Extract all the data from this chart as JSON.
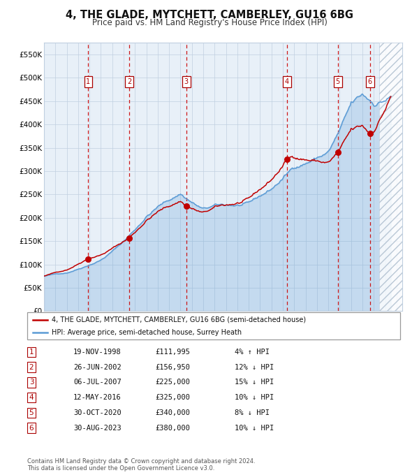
{
  "title": "4, THE GLADE, MYTCHETT, CAMBERLEY, GU16 6BG",
  "subtitle": "Price paid vs. HM Land Registry's House Price Index (HPI)",
  "legend_line1": "4, THE GLADE, MYTCHETT, CAMBERLEY, GU16 6BG (semi-detached house)",
  "legend_line2": "HPI: Average price, semi-detached house, Surrey Heath",
  "footer1": "Contains HM Land Registry data © Crown copyright and database right 2024.",
  "footer2": "This data is licensed under the Open Government Licence v3.0.",
  "xlim_start": 1995.0,
  "xlim_end": 2026.5,
  "ylim_min": 0,
  "ylim_max": 575000,
  "yticks": [
    0,
    50000,
    100000,
    150000,
    200000,
    250000,
    300000,
    350000,
    400000,
    450000,
    500000,
    550000
  ],
  "ytick_labels": [
    "£0",
    "£50K",
    "£100K",
    "£150K",
    "£200K",
    "£250K",
    "£300K",
    "£350K",
    "£400K",
    "£450K",
    "£500K",
    "£550K"
  ],
  "xticks": [
    1995,
    1996,
    1997,
    1998,
    1999,
    2000,
    2001,
    2002,
    2003,
    2004,
    2005,
    2006,
    2007,
    2008,
    2009,
    2010,
    2011,
    2012,
    2013,
    2014,
    2015,
    2016,
    2017,
    2018,
    2019,
    2020,
    2021,
    2022,
    2023,
    2024,
    2025,
    2026
  ],
  "sale_dates": [
    1998.89,
    2002.49,
    2007.51,
    2016.37,
    2020.83,
    2023.66
  ],
  "sale_prices": [
    111995,
    156950,
    225000,
    325000,
    340000,
    380000
  ],
  "sale_labels": [
    "1",
    "2",
    "3",
    "4",
    "5",
    "6"
  ],
  "sale_info": [
    {
      "num": "1",
      "date": "19-NOV-1998",
      "price": "£111,995",
      "pct": "4% ↑ HPI"
    },
    {
      "num": "2",
      "date": "26-JUN-2002",
      "price": "£156,950",
      "pct": "12% ↓ HPI"
    },
    {
      "num": "3",
      "date": "06-JUL-2007",
      "price": "£225,000",
      "pct": "15% ↓ HPI"
    },
    {
      "num": "4",
      "date": "12-MAY-2016",
      "price": "£325,000",
      "pct": "10% ↓ HPI"
    },
    {
      "num": "5",
      "date": "30-OCT-2020",
      "price": "£340,000",
      "pct": "8% ↓ HPI"
    },
    {
      "num": "6",
      "date": "30-AUG-2023",
      "price": "£380,000",
      "pct": "10% ↓ HPI"
    }
  ],
  "hpi_color": "#5b9bd5",
  "price_color": "#c00000",
  "bg_color": "#ffffff",
  "chart_bg": "#e8f0f8",
  "grid_color": "#c0cfe0"
}
